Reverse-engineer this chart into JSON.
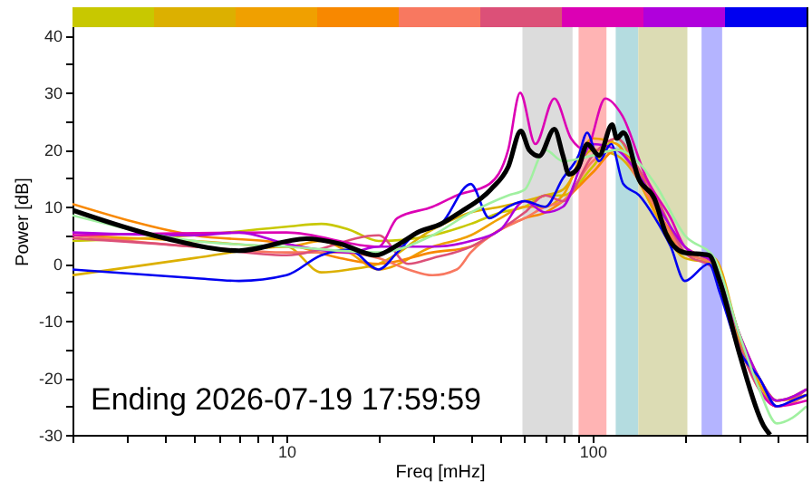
{
  "chart_data": {
    "type": "line",
    "xlabel": "Freq [mHz]",
    "ylabel": "Power [dB]",
    "log": "x",
    "xlim": [
      2,
      500
    ],
    "ylim": [
      -30,
      45
    ],
    "xticks": [
      {
        "value": 2,
        "label": null
      },
      {
        "value": 3,
        "label": null
      },
      {
        "value": 4,
        "label": null
      },
      {
        "value": 5,
        "label": null
      },
      {
        "value": 6,
        "label": null
      },
      {
        "value": 7,
        "label": null
      },
      {
        "value": 8,
        "label": null
      },
      {
        "value": 9,
        "label": null
      },
      10,
      {
        "value": 20,
        "label": null
      },
      {
        "value": 30,
        "label": null
      },
      {
        "value": 40,
        "label": null
      },
      {
        "value": 50,
        "label": null
      },
      {
        "value": 60,
        "label": null
      },
      {
        "value": 70,
        "label": null
      },
      {
        "value": 80,
        "label": null
      },
      {
        "value": 90,
        "label": null
      },
      100,
      {
        "value": 200,
        "label": null
      },
      {
        "value": 300,
        "label": null
      },
      {
        "value": 400,
        "label": null
      },
      {
        "value": 500,
        "label": null
      }
    ],
    "yticks": [
      -30,
      {
        "value": -25,
        "label": null
      },
      -20,
      {
        "value": -15,
        "label": null
      },
      -10,
      {
        "value": -5,
        "label": null
      },
      0,
      {
        "value": 5,
        "label": null
      },
      10,
      {
        "value": 15,
        "label": null
      },
      20,
      {
        "value": 25,
        "label": null
      },
      30,
      {
        "value": 35,
        "label": null
      },
      40
    ],
    "annotations": [
      "Ending 2026-07-19 17:59:59"
    ],
    "bands": [
      {
        "axis": "x",
        "from": 59,
        "to": 86,
        "color": "#dcdcdc"
      },
      {
        "axis": "x",
        "from": 90,
        "to": 111,
        "color": "#ffb4b4"
      },
      {
        "axis": "x",
        "from": 119,
        "to": 141,
        "color": "#b4dce0"
      },
      {
        "axis": "x",
        "from": 141,
        "to": 204,
        "color": "#dcdcb4"
      },
      {
        "axis": "x",
        "from": 227,
        "to": 265,
        "color": "#b4b4ff"
      }
    ],
    "series": [
      {
        "color": "#c8c800",
        "x": [
          2,
          5,
          10,
          13,
          16,
          20,
          30,
          40,
          50,
          60,
          70,
          80,
          100,
          120,
          140,
          160,
          200,
          250,
          300,
          350,
          400,
          500
        ],
        "values": [
          4,
          5,
          6.5,
          7,
          6,
          4,
          5,
          7,
          9,
          10,
          12,
          12,
          17,
          22,
          16,
          10,
          2,
          0,
          -13,
          -20,
          -24,
          -23
        ]
      },
      {
        "color": "#dcb000",
        "x": [
          2,
          5,
          10,
          13,
          16,
          20,
          30,
          40,
          50,
          60,
          70,
          80,
          100,
          120,
          140,
          160,
          200,
          250,
          300,
          350,
          400,
          500
        ],
        "values": [
          -2,
          1,
          3,
          -1.5,
          -1,
          0,
          6,
          9,
          10,
          11,
          12,
          13,
          20,
          19,
          15,
          9,
          1,
          0,
          -13,
          -21,
          -25,
          -23
        ]
      },
      {
        "color": "#f0a000",
        "x": [
          2,
          5,
          10,
          13,
          16,
          20,
          30,
          40,
          50,
          60,
          70,
          80,
          100,
          120,
          140,
          160,
          200,
          250,
          300,
          350,
          400,
          500
        ],
        "values": [
          5,
          4,
          3,
          4,
          2,
          -1,
          3,
          5,
          8,
          10,
          10,
          12,
          22,
          21,
          15,
          9,
          2,
          1,
          -12,
          -21,
          -24,
          -22
        ]
      },
      {
        "color": "#f88800",
        "x": [
          2,
          5,
          10,
          15,
          20,
          30,
          40,
          50,
          60,
          70,
          80,
          100,
          120,
          140,
          160,
          200,
          250,
          300,
          350,
          400,
          500
        ],
        "values": [
          10.5,
          5,
          3.5,
          1,
          0,
          2,
          3,
          6,
          8,
          9,
          11,
          16,
          20,
          17,
          10,
          3,
          0,
          -12,
          -20,
          -24,
          -23
        ]
      },
      {
        "color": "#f87860",
        "x": [
          2,
          5,
          10,
          15,
          20,
          25,
          30,
          36,
          40,
          50,
          60,
          70,
          80,
          100,
          120,
          140,
          160,
          200,
          250,
          300,
          350,
          400,
          500
        ],
        "values": [
          5,
          3,
          2,
          2,
          1,
          -1,
          -2,
          -1,
          2,
          6,
          8,
          10,
          11,
          18,
          20,
          15,
          10,
          2,
          0,
          -14,
          -22,
          -25,
          -23
        ]
      },
      {
        "color": "#dc5078",
        "x": [
          2,
          5,
          10,
          20,
          25,
          30,
          40,
          50,
          60,
          70,
          80,
          100,
          120,
          140,
          160,
          200,
          250,
          300,
          350,
          400,
          500
        ],
        "values": [
          4.5,
          3,
          1.5,
          5,
          0,
          1,
          3,
          6,
          9,
          12,
          11,
          19,
          22,
          17,
          12,
          2,
          -1,
          -14,
          -22,
          -25,
          -22
        ]
      },
      {
        "color": "#dc00b4",
        "x": [
          2,
          10,
          20,
          23,
          30,
          36,
          46,
          53,
          58,
          65,
          75,
          85,
          95,
          110,
          125,
          150,
          180,
          200,
          250,
          300,
          350,
          400,
          500
        ],
        "values": [
          5,
          5.5,
          3,
          8,
          10,
          12,
          14,
          20,
          30,
          21,
          29,
          22,
          20,
          29,
          26,
          15,
          8,
          3,
          0,
          -12,
          -22,
          -25,
          -24
        ]
      },
      {
        "color": "#b000dc",
        "x": [
          2,
          5,
          7,
          10,
          16,
          20,
          30,
          40,
          50,
          60,
          70,
          80,
          100,
          120,
          140,
          160,
          200,
          250,
          300,
          350,
          400,
          500
        ],
        "values": [
          5.5,
          5,
          5.5,
          3.5,
          2,
          3,
          3,
          4,
          6,
          11,
          9,
          10,
          21,
          20,
          16,
          11,
          3,
          0,
          -12,
          -20,
          -24,
          -22
        ]
      },
      {
        "color": "#0000f0",
        "x": [
          2,
          5,
          7,
          10,
          13,
          16,
          20,
          23,
          26,
          32,
          40,
          46,
          53,
          60,
          70,
          80,
          90,
          96,
          105,
          115,
          126,
          142,
          160,
          180,
          200,
          240,
          260,
          300,
          350,
          400,
          450,
          500
        ],
        "values": [
          -1,
          -2.5,
          -3,
          -2,
          1.5,
          2.5,
          -1,
          2,
          5,
          7,
          14,
          8,
          10,
          11,
          10,
          15,
          19,
          23,
          18,
          21,
          14,
          12,
          8,
          3,
          -3,
          0,
          -5,
          -15,
          -20,
          -25,
          -24,
          -23
        ]
      },
      {
        "color": "#a0f0a0",
        "x": [
          2,
          5,
          10,
          20,
          30,
          40,
          53,
          60,
          70,
          80,
          100,
          120,
          140,
          160,
          200,
          250,
          300,
          350,
          400,
          450,
          500
        ],
        "values": [
          8.5,
          4,
          3,
          2,
          5,
          9,
          12,
          13,
          20,
          18,
          19,
          20,
          18,
          14,
          5,
          1,
          -12,
          -22,
          -28,
          -27,
          -25
        ]
      },
      {
        "color": "#000000",
        "x": [
          2,
          4,
          7,
          11.6,
          15,
          19.6,
          23.4,
          26.8,
          32,
          36.8,
          46.4,
          53,
          58.3,
          62,
          66.9,
          75,
          80,
          83.7,
          90,
          96,
          105,
          115.8,
          120,
          126,
          142,
          159,
          174,
          198,
          240,
          260,
          302,
          362,
          380
        ],
        "values": [
          9.4,
          4.5,
          2.3,
          4.4,
          3.5,
          1.5,
          3.5,
          5.5,
          7,
          9,
          13,
          17,
          23.3,
          20,
          18.9,
          23.6,
          19,
          15.7,
          17,
          21,
          19,
          24.4,
          22,
          23,
          14.7,
          11.5,
          5.2,
          2,
          1.5,
          -3,
          -15.8,
          -28.4,
          -30
        ]
      }
    ]
  }
}
